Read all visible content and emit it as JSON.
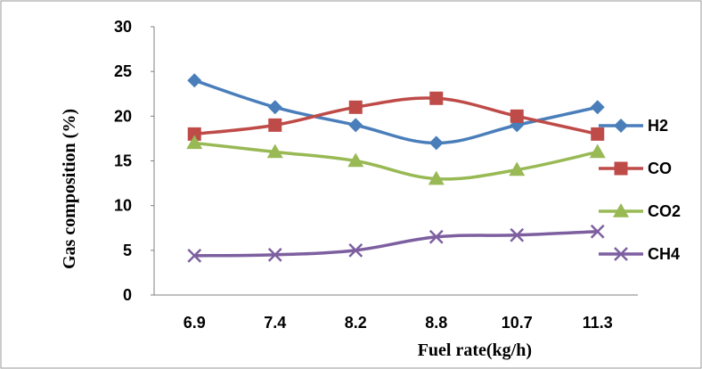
{
  "chart_data": {
    "type": "line",
    "categories": [
      "6.9",
      "7.4",
      "8.2",
      "8.8",
      "10.7",
      "11.3"
    ],
    "xlabel": "Fuel rate(kg/h)",
    "ylabel": "Gas composition (%)",
    "ylim": [
      0,
      30
    ],
    "yticks": [
      "0",
      "5",
      "10",
      "15",
      "20",
      "25",
      "30"
    ],
    "grid": false,
    "legend_position": "right",
    "series": [
      {
        "name": "H2",
        "values": [
          24,
          21,
          19,
          17,
          19,
          21
        ],
        "color": "#4a7ebb",
        "marker": "diamond"
      },
      {
        "name": "CO",
        "values": [
          18,
          19,
          21,
          22,
          20,
          18
        ],
        "color": "#be4b48",
        "marker": "square"
      },
      {
        "name": "CO2",
        "values": [
          17,
          16,
          15,
          13,
          14,
          16
        ],
        "color": "#98b954",
        "marker": "triangle"
      },
      {
        "name": "CH4",
        "values": [
          4.4,
          4.5,
          5,
          6.5,
          6.7,
          7.1
        ],
        "color": "#7d5fa0",
        "marker": "x"
      }
    ]
  }
}
